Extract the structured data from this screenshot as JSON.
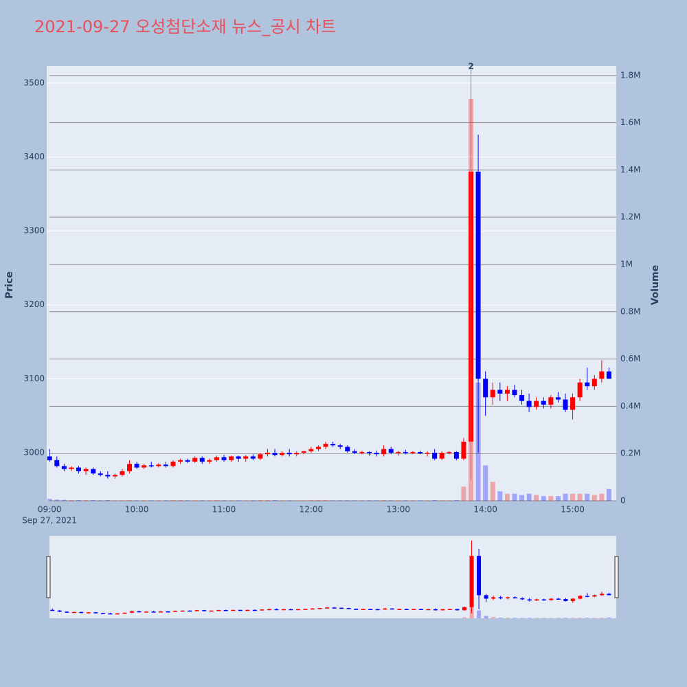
{
  "chart_data": {
    "type": "candlestick",
    "title": "2021-09-27 오성첨단소재 뉴스_공시 차트",
    "y_label": "Price",
    "y2_label": "Volume",
    "x_date_label": "Sep 27, 2021",
    "increasing_color": "#ff0000",
    "decreasing_color": "#0000ff",
    "x": [
      "09:00",
      "09:05",
      "09:10",
      "09:15",
      "09:20",
      "09:25",
      "09:30",
      "09:35",
      "09:40",
      "09:45",
      "09:50",
      "09:55",
      "10:00",
      "10:05",
      "10:10",
      "10:15",
      "10:20",
      "10:25",
      "10:30",
      "10:35",
      "10:40",
      "10:45",
      "10:50",
      "10:55",
      "11:00",
      "11:05",
      "11:10",
      "11:15",
      "11:20",
      "11:25",
      "11:30",
      "11:35",
      "11:40",
      "11:45",
      "11:50",
      "11:55",
      "12:00",
      "12:05",
      "12:10",
      "12:15",
      "12:20",
      "12:25",
      "12:30",
      "12:35",
      "12:40",
      "12:45",
      "12:50",
      "12:55",
      "13:00",
      "13:05",
      "13:10",
      "13:15",
      "13:20",
      "13:25",
      "13:30",
      "13:35",
      "13:40",
      "13:45",
      "13:50",
      "13:55",
      "14:00",
      "14:05",
      "14:10",
      "14:15",
      "14:20",
      "14:25",
      "14:30",
      "14:35",
      "14:40",
      "14:45",
      "14:50",
      "14:55",
      "15:00",
      "15:05",
      "15:10",
      "15:15",
      "15:20",
      "15:25"
    ],
    "open": [
      2995,
      2990,
      2982,
      2978,
      2980,
      2975,
      2978,
      2972,
      2970,
      2968,
      2970,
      2975,
      2985,
      2980,
      2983,
      2982,
      2984,
      2982,
      2988,
      2990,
      2988,
      2993,
      2988,
      2990,
      2994,
      2990,
      2995,
      2992,
      2995,
      2992,
      2998,
      3000,
      2997,
      3000,
      2998,
      3000,
      3002,
      3005,
      3008,
      3012,
      3010,
      3008,
      3002,
      3000,
      3001,
      3000,
      2998,
      3005,
      3000,
      3001,
      3000,
      3001,
      2999,
      3000,
      2992,
      3000,
      3001,
      2992,
      3015,
      3380,
      3100,
      3075,
      3085,
      3080,
      3085,
      3078,
      3070,
      3062,
      3070,
      3065,
      3075,
      3072,
      3058,
      3075,
      3095,
      3090,
      3100,
      3110
    ],
    "high": [
      3005,
      2995,
      2985,
      2982,
      2982,
      2980,
      2980,
      2975,
      2975,
      2972,
      2978,
      2990,
      2988,
      2985,
      2988,
      2986,
      2988,
      2990,
      2992,
      2992,
      2995,
      2995,
      2992,
      2996,
      2997,
      2996,
      2996,
      2997,
      2998,
      3000,
      3005,
      3005,
      3002,
      3005,
      3002,
      3003,
      3008,
      3010,
      3015,
      3015,
      3012,
      3010,
      3005,
      3003,
      3002,
      3003,
      3010,
      3008,
      3003,
      3004,
      3002,
      3003,
      3002,
      3005,
      3002,
      3002,
      3002,
      3020,
      3490,
      3430,
      3110,
      3095,
      3095,
      3090,
      3092,
      3085,
      3080,
      3075,
      3075,
      3078,
      3082,
      3080,
      3080,
      3100,
      3115,
      3105,
      3125,
      3115
    ],
    "low": [
      2988,
      2980,
      2975,
      2975,
      2972,
      2970,
      2970,
      2968,
      2965,
      2965,
      2968,
      2972,
      2978,
      2978,
      2980,
      2980,
      2980,
      2980,
      2985,
      2986,
      2986,
      2985,
      2985,
      2988,
      2988,
      2988,
      2988,
      2988,
      2990,
      2990,
      2995,
      2995,
      2995,
      2995,
      2995,
      2998,
      3000,
      3002,
      3005,
      3008,
      3005,
      3000,
      2998,
      2998,
      2996,
      2995,
      2995,
      2998,
      2996,
      2998,
      2998,
      2998,
      2995,
      2990,
      2990,
      2998,
      2990,
      2990,
      2970,
      3000,
      3050,
      3065,
      3070,
      3070,
      3075,
      3065,
      3055,
      3058,
      3060,
      3060,
      3068,
      3055,
      3045,
      3070,
      3085,
      3085,
      3095,
      3100
    ],
    "close": [
      2990,
      2982,
      2978,
      2980,
      2975,
      2978,
      2972,
      2970,
      2968,
      2970,
      2975,
      2985,
      2980,
      2983,
      2982,
      2984,
      2982,
      2988,
      2990,
      2988,
      2993,
      2988,
      2990,
      2994,
      2990,
      2995,
      2992,
      2995,
      2992,
      2998,
      3000,
      2997,
      3000,
      2998,
      3000,
      3002,
      3005,
      3008,
      3012,
      3010,
      3008,
      3002,
      3000,
      3001,
      3000,
      2998,
      3005,
      3000,
      3001,
      3000,
      3001,
      2999,
      3000,
      2992,
      3000,
      3001,
      2992,
      3015,
      3380,
      3100,
      3075,
      3085,
      3080,
      3085,
      3078,
      3070,
      3062,
      3070,
      3065,
      3075,
      3072,
      3058,
      3075,
      3095,
      3090,
      3100,
      3110,
      3100
    ],
    "volume": [
      8000,
      5000,
      4000,
      3000,
      3000,
      3000,
      3000,
      2000,
      3000,
      2000,
      2000,
      3000,
      2000,
      2000,
      2000,
      2000,
      2000,
      3000,
      3000,
      2000,
      2000,
      2000,
      2000,
      3000,
      2000,
      2000,
      2000,
      2000,
      2000,
      3000,
      3000,
      3000,
      2000,
      2000,
      2000,
      2000,
      3000,
      3000,
      3000,
      2000,
      2000,
      2000,
      2000,
      2000,
      2000,
      2000,
      3000,
      2000,
      2000,
      2000,
      2000,
      2000,
      2000,
      3000,
      2000,
      2000,
      3000,
      60000,
      1700000,
      500000,
      150000,
      80000,
      40000,
      30000,
      30000,
      25000,
      30000,
      25000,
      20000,
      20000,
      20000,
      30000,
      30000,
      30000,
      30000,
      25000,
      30000,
      50000
    ],
    "xlim": [
      "08:58",
      "15:30"
    ],
    "xticks": [
      "09:00",
      "10:00",
      "11:00",
      "12:00",
      "13:00",
      "14:00",
      "15:00"
    ],
    "ylim": [
      2935,
      3523
    ],
    "yticks": [
      3000,
      3100,
      3200,
      3300,
      3400,
      3500
    ],
    "y2lim": [
      0,
      1840000
    ],
    "y2ticks": [
      0,
      {
        "value": 200000,
        "label": "0.2M"
      },
      {
        "value": 400000,
        "label": "0.4M"
      },
      {
        "value": 600000,
        "label": "0.6M"
      },
      {
        "value": 800000,
        "label": "0.8M"
      },
      {
        "value": 1000000,
        "label": "1M"
      },
      {
        "value": 1200000,
        "label": "1.2M"
      },
      {
        "value": 1400000,
        "label": "1.4M"
      },
      {
        "value": 1600000,
        "label": "1.6M"
      },
      {
        "value": 1800000,
        "label": "1.8M"
      }
    ],
    "annotations": [
      {
        "x": "13:50",
        "text": "2"
      }
    ],
    "grid": true,
    "rangeslider": true
  }
}
